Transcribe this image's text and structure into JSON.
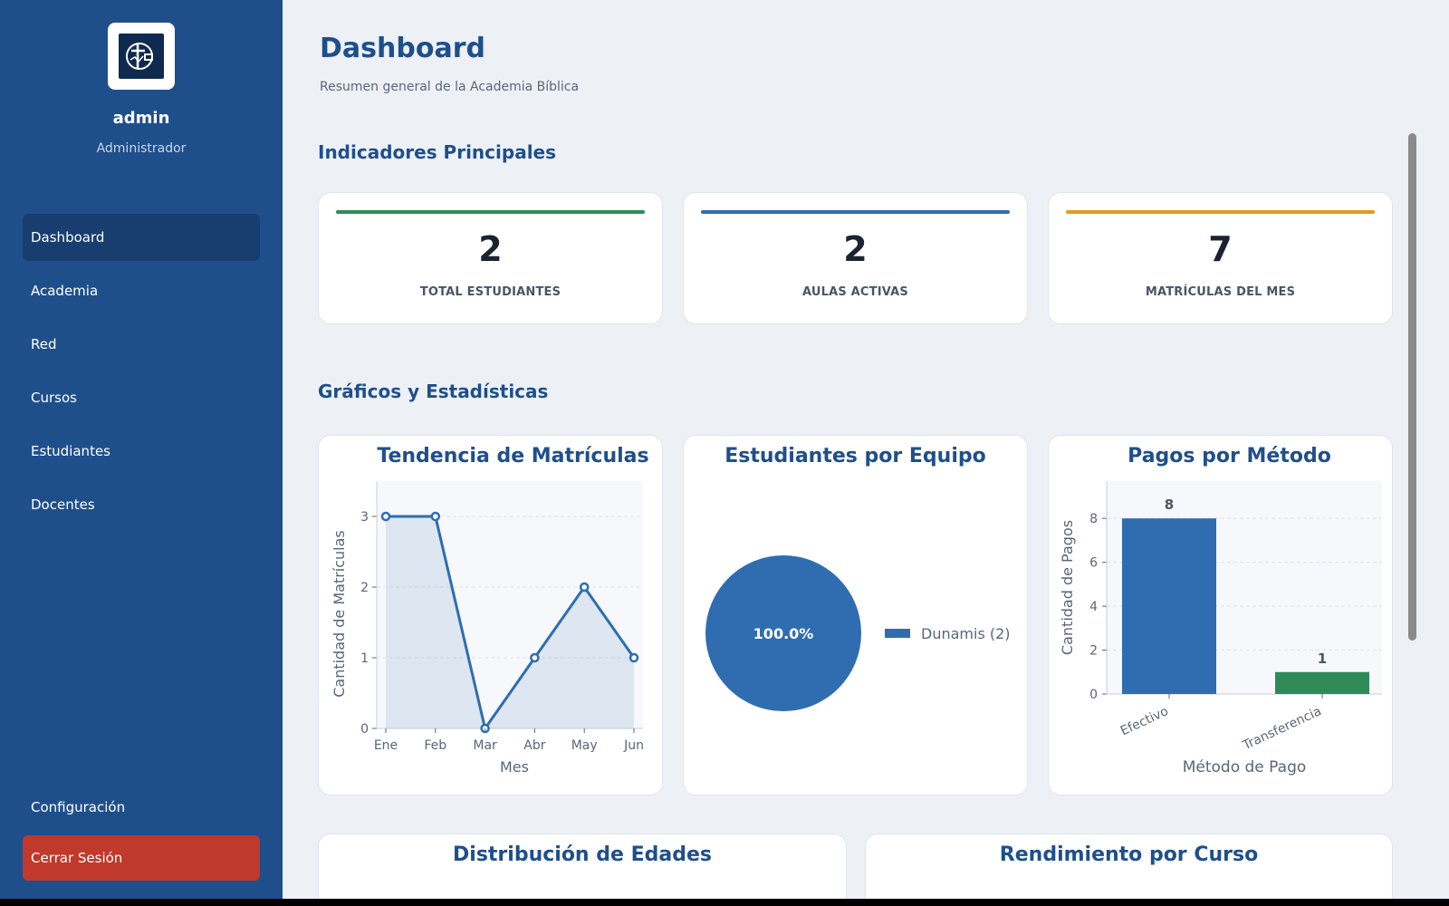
{
  "user": {
    "name": "admin",
    "role": "Administrador"
  },
  "nav": {
    "items": [
      {
        "label": "Dashboard",
        "active": true
      },
      {
        "label": "Academia",
        "active": false
      },
      {
        "label": "Red",
        "active": false
      },
      {
        "label": "Cursos",
        "active": false
      },
      {
        "label": "Estudiantes",
        "active": false
      },
      {
        "label": "Docentes",
        "active": false
      }
    ],
    "config_label": "Configuración",
    "logout_label": "Cerrar Sesión"
  },
  "page": {
    "title": "Dashboard",
    "subtitle": "Resumen general de la Academia Bíblica"
  },
  "sections": {
    "kpis": "Indicadores Principales",
    "charts": "Gráficos y Estadísticas"
  },
  "kpis": [
    {
      "value": "2",
      "label": "TOTAL ESTUDIANTES",
      "color": "#2e8b57"
    },
    {
      "value": "2",
      "label": "AULAS ACTIVAS",
      "color": "#2f6db0"
    },
    {
      "value": "7",
      "label": "MATRÍCULAS DEL MES",
      "color": "#e39b1e"
    }
  ],
  "colors": {
    "primary": "#2f6db0",
    "green": "#2e8b57",
    "sidebar": "#1f4f8b",
    "danger": "#c0392b"
  },
  "chart_data": [
    {
      "type": "line",
      "title": "Tendencia de Matrículas",
      "xlabel": "Mes",
      "ylabel": "Cantidad de Matrículas",
      "categories": [
        "Ene",
        "Feb",
        "Mar",
        "Abr",
        "May",
        "Jun"
      ],
      "values": [
        3,
        3,
        0,
        1,
        2,
        1
      ],
      "yticks": [
        0,
        1,
        2,
        3
      ],
      "ylim": [
        0,
        3.5
      ],
      "grid": true,
      "fill": true
    },
    {
      "type": "pie",
      "title": "Estudiantes por Equipo",
      "slices": [
        {
          "label": "Dunamis (2)",
          "value": 2,
          "percent_label": "100.0%"
        }
      ],
      "legend": "right"
    },
    {
      "type": "bar",
      "title": "Pagos por Método",
      "xlabel": "Método de Pago",
      "ylabel": "Cantidad de Pagos",
      "categories": [
        "Efectivo",
        "Transferencia"
      ],
      "values": [
        8,
        1
      ],
      "colors": [
        "#2f6db0",
        "#2e8b57"
      ],
      "yticks": [
        0,
        2,
        4,
        6,
        8
      ],
      "ylim": [
        0,
        9.7
      ],
      "grid": true
    }
  ],
  "lower_cards": {
    "ages_title": "Distribución de Edades",
    "course_title": "Rendimiento por Curso"
  }
}
